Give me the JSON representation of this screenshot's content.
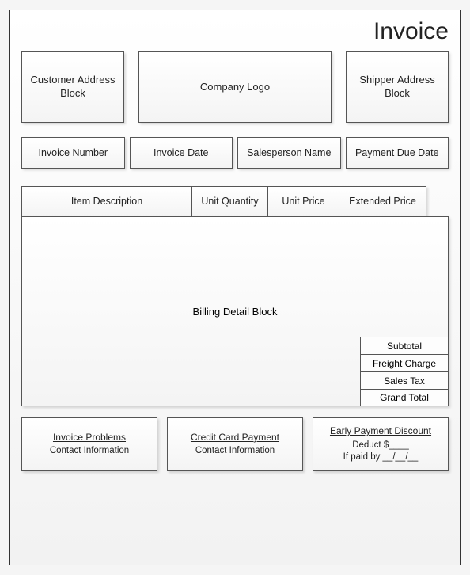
{
  "title": "Invoice",
  "header": {
    "customer_block": "Customer Address\nBlock",
    "company_logo": "Company Logo",
    "shipper_block": "Shipper Address\nBlock"
  },
  "meta": {
    "invoice_number": "Invoice Number",
    "invoice_date": "Invoice Date",
    "salesperson": "Salesperson Name",
    "payment_due": "Payment Due Date"
  },
  "table": {
    "columns": {
      "description": "Item Description",
      "quantity": "Unit Quantity",
      "unit_price": "Unit Price",
      "extended": "Extended Price"
    },
    "body_label": "Billing Detail Block",
    "totals": {
      "subtotal": "Subtotal",
      "freight": "Freight Charge",
      "tax": "Sales Tax",
      "grand": "Grand Total"
    }
  },
  "footer": {
    "problems": {
      "title": "Invoice Problems",
      "line": "Contact Information"
    },
    "credit": {
      "title": "Credit Card Payment",
      "line": "Contact Information"
    },
    "discount": {
      "title": "Early Payment Discount",
      "line1": "Deduct $____",
      "line2": "If paid by __/__/__"
    }
  },
  "colors": {
    "border": "#555555",
    "bg_top": "#ffffff",
    "bg_bottom": "#f2f2f2",
    "text": "#222222"
  }
}
